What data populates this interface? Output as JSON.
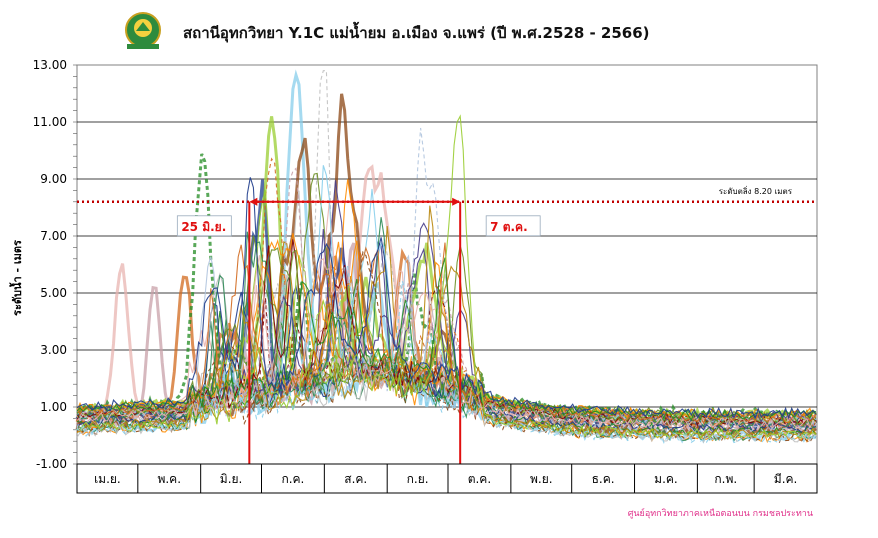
{
  "logo": {
    "text": "กรมชลประทาน",
    "icon": "rid-logo-icon"
  },
  "chart_data": {
    "type": "line",
    "title": "สถานีอุทกวิทยา Y.1C แม่น้ำยม อ.เมือง จ.แพร่ (ปี พ.ศ.2528 - 2566)",
    "ylabel": "ระดับน้ำ - เมตร",
    "xlabel": "",
    "ylim": [
      -1.0,
      13.0
    ],
    "yticks": [
      "13.00",
      "11.00",
      "9.00",
      "7.00",
      "5.00",
      "3.00",
      "1.00",
      "-1.00"
    ],
    "categories": [
      "เม.ย.",
      "พ.ค.",
      "มิ.ย.",
      "ก.ค.",
      "ส.ค.",
      "ก.ย.",
      "ต.ค.",
      "พ.ย.",
      "ธ.ค.",
      "ม.ค.",
      "ก.พ.",
      "มี.ค."
    ],
    "grid": true,
    "reference_line": {
      "value": 8.2,
      "label": "ระดับตลิ่ง 8.20  เมตร",
      "color": "#c00000"
    },
    "annotations": [
      {
        "text": "25 มิ.ย.",
        "day": 85,
        "color": "#e01010"
      },
      {
        "text": "7 ต.ค.",
        "day": 189,
        "color": "#e01010"
      }
    ],
    "series_count": 39,
    "series_years": "2528-2566",
    "envelope": {
      "month_days": [
        0,
        30,
        61,
        91,
        122,
        153,
        183,
        214,
        244,
        275,
        306,
        334,
        365
      ],
      "typical_low": [
        0.5,
        0.6,
        0.7,
        1.0,
        1.5,
        1.8,
        1.2,
        0.7,
        0.45,
        0.35,
        0.3,
        0.3,
        0.3
      ],
      "peaks": [
        {
          "day": 22,
          "value": 5.9
        },
        {
          "day": 38,
          "value": 5.3
        },
        {
          "day": 53,
          "value": 5.7
        },
        {
          "day": 62,
          "value": 9.3
        },
        {
          "day": 88,
          "value": 6.6
        },
        {
          "day": 96,
          "value": 10.5
        },
        {
          "day": 107,
          "value": 10.3
        },
        {
          "day": 112,
          "value": 9.2
        },
        {
          "day": 122,
          "value": 11.7
        },
        {
          "day": 128,
          "value": 8.3
        },
        {
          "day": 134,
          "value": 8.5
        },
        {
          "day": 150,
          "value": 7.6
        },
        {
          "day": 163,
          "value": 6.2
        },
        {
          "day": 178,
          "value": 5.1
        },
        {
          "day": 193,
          "value": 2.3
        }
      ]
    },
    "colors": [
      "#e8b4b0",
      "#c8a0a8",
      "#d2691e",
      "#228b22",
      "#1e3c8c",
      "#9acd32",
      "#87ceeb",
      "#8b4513",
      "#c0c0c0",
      "#483d8b",
      "#ff8c00",
      "#2e8b57",
      "#b0c4de",
      "#800000",
      "#6b8e23",
      "#b8860b"
    ]
  },
  "credit": "ศูนย์อุทกวิทยาภาคเหนือตอนบน กรมชลประทาน"
}
